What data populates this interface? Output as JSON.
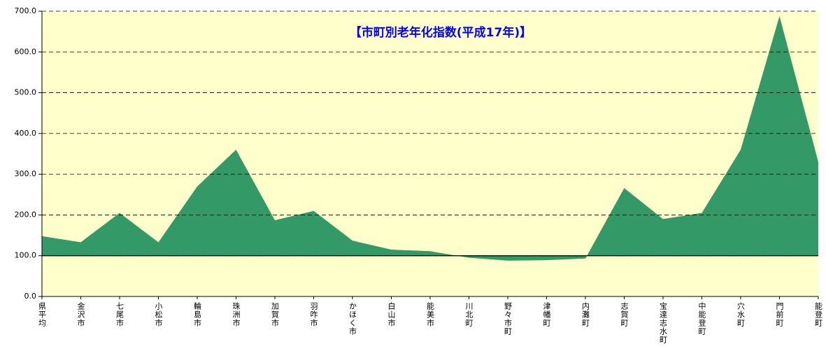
{
  "chart_data": {
    "type": "area",
    "title": "【市町別老年化指数(平成17年)】",
    "categories": [
      "県平均",
      "金沢市",
      "七尾市",
      "小松市",
      "輪島市",
      "珠洲市",
      "加賀市",
      "羽咋市",
      "かほく市",
      "白山市",
      "能美市",
      "川北町",
      "野々市町",
      "津幡町",
      "内灘町",
      "志賀町",
      "宝達志水町",
      "中能登町",
      "穴水町",
      "門前町",
      "能登町"
    ],
    "values": [
      148,
      133,
      205,
      133,
      270,
      360,
      187,
      210,
      137,
      115,
      111,
      95,
      88,
      89,
      93,
      266,
      190,
      205,
      360,
      688,
      330
    ],
    "baseline": 100,
    "color": "#339966",
    "background": "#ffffcc",
    "title_color": "#0000ff",
    "ylim": [
      0,
      700
    ],
    "yticks": [
      {
        "value": 0,
        "label": "0.0"
      },
      {
        "value": 100,
        "label": "100.0"
      },
      {
        "value": 200,
        "label": "200.0"
      },
      {
        "value": 300,
        "label": "300.0"
      },
      {
        "value": 400,
        "label": "400.0"
      },
      {
        "value": 500,
        "label": "500.0"
      },
      {
        "value": 600,
        "label": "600.0"
      },
      {
        "value": 700,
        "label": "700.0"
      }
    ],
    "grid": true
  }
}
